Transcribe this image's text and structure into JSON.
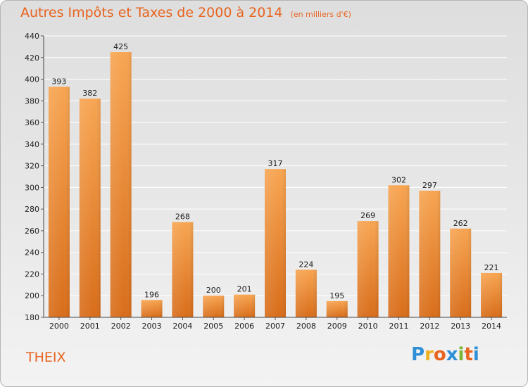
{
  "title": "Autres Impôts et Taxes de 2000 à 2014",
  "subtitle": "(en milliers d'€)",
  "place": "THEIX",
  "logo": {
    "text": "Proxiti",
    "letters": [
      {
        "ch": "P",
        "color": "#2e8fd6"
      },
      {
        "ch": "r",
        "color": "#f0b020"
      },
      {
        "ch": "o",
        "color": "#e8641f"
      },
      {
        "ch": "x",
        "color": "#2e8fd6"
      },
      {
        "ch": "i",
        "color": "#7ab630"
      },
      {
        "ch": "t",
        "color": "#e8641f"
      },
      {
        "ch": "i",
        "color": "#2e8fd6"
      }
    ]
  },
  "colors": {
    "accent": "#e8641f",
    "bar_top": "#f7a552",
    "bar_bottom": "#d86d1a",
    "grid": "#ffffff",
    "axis_text": "#222222"
  },
  "chart_data": {
    "type": "bar",
    "categories": [
      "2000",
      "2001",
      "2002",
      "2003",
      "2004",
      "2005",
      "2006",
      "2007",
      "2008",
      "2009",
      "2010",
      "2011",
      "2012",
      "2013",
      "2014"
    ],
    "values": [
      393,
      382,
      425,
      196,
      268,
      200,
      201,
      317,
      224,
      195,
      269,
      302,
      297,
      262,
      221
    ],
    "ylim": [
      180,
      440
    ],
    "yticks": [
      180,
      200,
      220,
      240,
      260,
      280,
      300,
      320,
      340,
      360,
      380,
      400,
      420,
      440
    ],
    "grid": true,
    "xlabel": "",
    "ylabel": ""
  }
}
